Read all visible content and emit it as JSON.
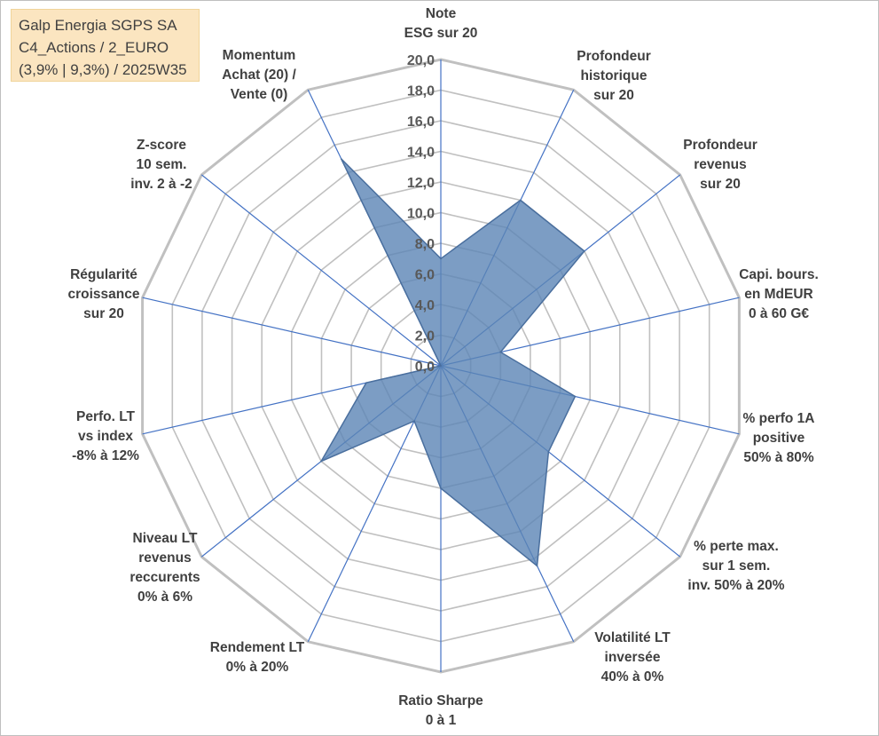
{
  "title_box": {
    "line1": "Galp Energia SGPS SA",
    "line2": "C4_Actions / 2_EURO",
    "line3": "(3,9% | 9,3%) / 2025W35"
  },
  "colors": {
    "grid": "#c0c0c0",
    "spoke": "#4472c4",
    "fill": "#5b84b5",
    "outline": "#4a6f9e"
  },
  "chart_data": {
    "type": "radar",
    "rlim": [
      0,
      20
    ],
    "r_ticks": [
      "0,0",
      "2,0",
      "4,0",
      "6,0",
      "8,0",
      "10,0",
      "12,0",
      "14,0",
      "16,0",
      "18,0",
      "20,0"
    ],
    "r_tick_values": [
      0,
      2,
      4,
      6,
      8,
      10,
      12,
      14,
      16,
      18,
      20
    ],
    "grid": true,
    "axes": [
      {
        "label": [
          "Note",
          "ESG sur 20"
        ],
        "value": 7.0
      },
      {
        "label": [
          "Profondeur",
          "historique",
          "sur 20"
        ],
        "value": 12.0
      },
      {
        "label": [
          "Profondeur",
          "revenus",
          "sur 20"
        ],
        "value": 12.0
      },
      {
        "label": [
          "Capi. bours.",
          "en MdEUR",
          "0 à 60 G€"
        ],
        "value": 4.0
      },
      {
        "label": [
          "% perfo 1A",
          "positive",
          "50% à 80%"
        ],
        "value": 9.0
      },
      {
        "label": [
          "% perte max.",
          "sur 1 sem.",
          "inv. 50% à 20%"
        ],
        "value": 9.0
      },
      {
        "label": [
          "Volatilité LT",
          "inversée",
          "40% à 0%"
        ],
        "value": 14.5
      },
      {
        "label": [
          "Ratio Sharpe",
          "0 à 1"
        ],
        "value": 8.0
      },
      {
        "label": [
          "Rendement LT",
          "0% à 20%"
        ],
        "value": 4.0
      },
      {
        "label": [
          "Niveau LT",
          "revenus",
          "reccurents",
          "0% à 6%"
        ],
        "value": 10.0
      },
      {
        "label": [
          "Perfo. LT",
          "vs index",
          "-8% à 12%"
        ],
        "value": 5.0
      },
      {
        "label": [
          "Régularité",
          "croissance",
          "sur 20"
        ],
        "value": 0.0
      },
      {
        "label": [
          "Z-score",
          "10 sem.",
          "inv. 2 à -2"
        ],
        "value": 0.0
      },
      {
        "label": [
          "Momentum",
          "Achat (20) /",
          "Vente (0)"
        ],
        "value": 15.0
      }
    ]
  }
}
